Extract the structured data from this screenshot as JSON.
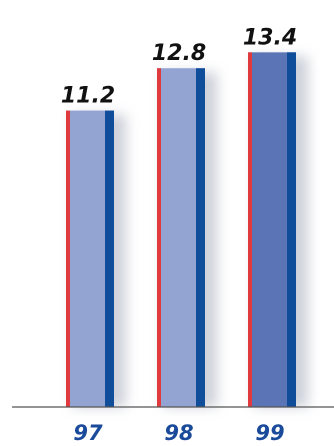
{
  "chart_data": {
    "type": "bar",
    "categories": [
      "97",
      "98",
      "99"
    ],
    "values": [
      11.2,
      12.8,
      13.4
    ],
    "value_labels": [
      "11.2",
      "12.8",
      "13.4"
    ],
    "title": "",
    "xlabel": "",
    "ylabel": "",
    "ylim": [
      0,
      15
    ],
    "grid": false,
    "legend": "none",
    "colors": {
      "bar_fill": [
        "#93a3d2",
        "#93a3d2",
        "#5a74b5"
      ],
      "bar_left_edge": "#e03a3f",
      "bar_right_edge": "#0f4d9b",
      "tick_label": "#1a4a9a",
      "value_label": "#111111",
      "axis": "#555555",
      "shadow": "#c9ccd6"
    }
  }
}
